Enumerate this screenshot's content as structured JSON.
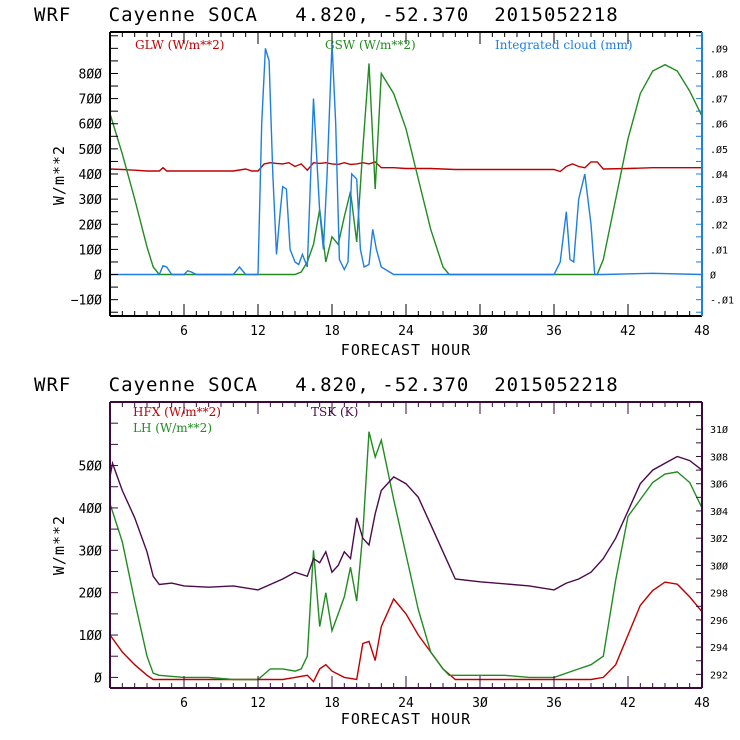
{
  "chart_data": [
    {
      "type": "line",
      "title": "WRF   Cayenne SOCA   4.820, -52.370  2015052218",
      "xlabel": "FORECAST HOUR",
      "ylabel": "W/m**2",
      "xlim": [
        0,
        48
      ],
      "ylim": [
        -165,
        965
      ],
      "xticks": [
        6,
        12,
        18,
        24,
        30,
        36,
        42,
        48
      ],
      "yticks": [
        -100,
        0,
        100,
        200,
        300,
        400,
        500,
        600,
        700,
        800
      ],
      "y2lim": [
        -0.0165,
        0.0965
      ],
      "y2ticks": [
        -0.01,
        0,
        0.01,
        0.02,
        0.03,
        0.04,
        0.05,
        0.06,
        0.07,
        0.08,
        0.09
      ],
      "y2ticklabels": [
        "-.01",
        "0",
        ".01",
        ".02",
        ".03",
        ".04",
        ".05",
        ".06",
        ".07",
        ".08",
        ".09"
      ],
      "legend_placement": "top",
      "series": [
        {
          "name": "GLW (W/m**2)",
          "color": "#c00000",
          "axis": "left",
          "x": [
            0,
            1,
            2,
            3,
            4,
            4.3,
            4.6,
            5,
            6,
            7,
            8,
            9,
            10,
            11,
            11.5,
            12,
            12.5,
            13,
            13.5,
            14,
            14.5,
            15,
            15.5,
            16,
            16.5,
            17,
            17.5,
            18,
            18.5,
            19,
            19.5,
            20,
            20.5,
            21,
            21.5,
            22,
            23,
            24,
            26,
            28,
            30,
            32,
            34,
            36,
            36.5,
            37,
            37.5,
            38,
            38.5,
            39,
            39.5,
            40,
            42,
            44,
            46,
            48
          ],
          "y": [
            420,
            418,
            415,
            412,
            412,
            425,
            412,
            412,
            412,
            412,
            412,
            412,
            412,
            420,
            412,
            412,
            440,
            445,
            442,
            440,
            445,
            430,
            440,
            415,
            445,
            442,
            445,
            440,
            438,
            445,
            438,
            440,
            445,
            440,
            448,
            425,
            425,
            422,
            422,
            418,
            418,
            418,
            418,
            418,
            410,
            430,
            440,
            430,
            425,
            448,
            448,
            420,
            422,
            425,
            425,
            425
          ]
        },
        {
          "name": "GSW (W/m**2)",
          "color": "#228b22",
          "axis": "left",
          "x": [
            0,
            1,
            2,
            3,
            3.5,
            4,
            6,
            8,
            10,
            12,
            13,
            14,
            15,
            15.5,
            16,
            16.5,
            17,
            17.5,
            18,
            18.5,
            19,
            19.5,
            20,
            20.5,
            21,
            21.5,
            22,
            23,
            24,
            25,
            26,
            27,
            27.5,
            28,
            30,
            32,
            34,
            36,
            38,
            39,
            39.5,
            40,
            41,
            42,
            43,
            44,
            45,
            46,
            47,
            48
          ],
          "y": [
            640,
            480,
            300,
            110,
            30,
            0,
            0,
            0,
            0,
            0,
            0,
            0,
            0,
            10,
            50,
            120,
            260,
            50,
            150,
            120,
            230,
            330,
            130,
            500,
            840,
            340,
            800,
            720,
            580,
            380,
            180,
            30,
            0,
            0,
            0,
            0,
            0,
            0,
            0,
            0,
            0,
            60,
            300,
            540,
            720,
            810,
            835,
            810,
            730,
            630
          ]
        },
        {
          "name": "Integrated cloud (mm)",
          "color": "#1e7fe0",
          "axis": "right",
          "x": [
            0,
            2,
            4,
            4.3,
            4.6,
            5,
            6,
            6.3,
            6.6,
            7,
            10,
            10.5,
            11,
            12,
            12.3,
            12.6,
            12.9,
            13.2,
            13.5,
            13.8,
            14,
            14.3,
            14.6,
            15,
            15.3,
            15.6,
            16,
            16.5,
            17,
            17.3,
            17.6,
            18,
            18.3,
            18.6,
            19,
            19.3,
            19.6,
            20,
            20.3,
            20.6,
            21,
            21.3,
            21.6,
            22,
            23,
            24,
            30,
            36,
            36.5,
            37,
            37.3,
            37.6,
            38,
            38.5,
            39,
            39.3,
            40,
            44,
            48
          ],
          "y": [
            0,
            0,
            0,
            0.0035,
            0.003,
            0,
            0,
            0.0015,
            0.001,
            0,
            0,
            0.003,
            0,
            0,
            0.06,
            0.09,
            0.085,
            0.04,
            0.008,
            0.025,
            0.035,
            0.034,
            0.01,
            0.005,
            0.004,
            0.008,
            0.003,
            0.07,
            0.025,
            0.01,
            0.04,
            0.092,
            0.06,
            0.006,
            0.002,
            0.005,
            0.04,
            0.038,
            0.01,
            0.003,
            0.004,
            0.018,
            0.01,
            0.003,
            0,
            0,
            0,
            0,
            0.005,
            0.025,
            0.006,
            0.005,
            0.03,
            0.04,
            0.02,
            0,
            0,
            0.0005,
            0
          ]
        }
      ]
    },
    {
      "type": "line",
      "title": "WRF   Cayenne SOCA   4.820, -52.370  2015052218",
      "xlabel": "FORECAST HOUR",
      "ylabel": "W/m**2",
      "xlim": [
        0,
        48
      ],
      "ylim": [
        -25,
        650
      ],
      "xticks": [
        6,
        12,
        18,
        24,
        30,
        36,
        42,
        48
      ],
      "yticks": [
        0,
        100,
        200,
        300,
        400,
        500
      ],
      "y2lim": [
        291,
        312
      ],
      "y2ticks": [
        292,
        294,
        296,
        298,
        300,
        302,
        304,
        306,
        308,
        310
      ],
      "legend_placement": "top-left",
      "series": [
        {
          "name": "HFX (W/m**2)",
          "color": "#c00000",
          "axis": "left",
          "x": [
            0,
            1,
            2,
            3,
            3.5,
            4,
            6,
            8,
            10,
            12,
            14,
            15,
            16,
            16.5,
            17,
            17.5,
            18,
            19,
            20,
            20.5,
            21,
            21.5,
            22,
            23,
            24,
            25,
            26,
            27,
            28,
            30,
            32,
            34,
            36,
            38,
            39,
            40,
            41,
            42,
            43,
            44,
            45,
            46,
            47,
            48
          ],
          "y": [
            100,
            60,
            30,
            5,
            -5,
            -5,
            -5,
            -5,
            -5,
            -5,
            -5,
            0,
            5,
            -10,
            20,
            30,
            15,
            0,
            -5,
            80,
            85,
            40,
            120,
            185,
            150,
            100,
            60,
            20,
            -5,
            -5,
            -5,
            -5,
            -5,
            -5,
            -5,
            0,
            30,
            100,
            170,
            205,
            225,
            220,
            190,
            155
          ]
        },
        {
          "name": "LH (W/m**2)",
          "color": "#228b22",
          "axis": "left",
          "x": [
            0,
            1,
            2,
            3,
            3.5,
            4,
            6,
            8,
            10,
            12,
            13,
            14,
            15,
            15.5,
            16,
            16.5,
            17,
            17.5,
            18,
            18.5,
            19,
            19.5,
            20,
            20.5,
            21,
            21.5,
            22,
            23,
            24,
            25,
            26,
            27,
            27.5,
            28,
            30,
            32,
            34,
            36,
            38,
            39,
            40,
            41,
            42,
            43,
            44,
            45,
            46,
            47,
            48
          ],
          "y": [
            410,
            320,
            180,
            50,
            10,
            5,
            0,
            0,
            -5,
            -5,
            20,
            20,
            15,
            20,
            50,
            300,
            120,
            200,
            110,
            150,
            190,
            260,
            180,
            340,
            580,
            520,
            560,
            420,
            290,
            160,
            60,
            20,
            5,
            5,
            5,
            5,
            0,
            0,
            20,
            30,
            50,
            230,
            380,
            420,
            460,
            480,
            485,
            460,
            400
          ]
        },
        {
          "name": "TSK (K)",
          "color": "#4b0a4b",
          "axis": "right",
          "x": [
            0,
            0.2,
            1,
            2,
            3,
            3.5,
            4,
            5,
            6,
            8,
            10,
            12,
            14,
            15,
            16,
            16.5,
            17,
            17.5,
            18,
            18.5,
            19,
            19.5,
            20,
            20.5,
            21,
            21.5,
            22,
            23,
            24,
            25,
            26,
            27,
            28,
            30,
            34,
            36,
            37,
            38,
            39,
            40,
            41,
            42,
            43,
            44,
            45,
            46,
            47,
            48
          ],
          "y": [
            306.5,
            307.5,
            305.5,
            303.5,
            301,
            299.2,
            298.6,
            298.7,
            298.5,
            298.4,
            298.5,
            298.2,
            299,
            299.5,
            299.2,
            300.5,
            300.2,
            301,
            299.5,
            300,
            301,
            300.5,
            303.5,
            302,
            301.5,
            303.8,
            305.5,
            306.5,
            306,
            305,
            303,
            301,
            299,
            298.8,
            298.5,
            298.2,
            298.7,
            299,
            299.5,
            300.5,
            302,
            304,
            306,
            307,
            307.5,
            308,
            307.7,
            307
          ]
        }
      ]
    }
  ],
  "charts": [
    {
      "title": "WRF   Cayenne SOCA   4.820, -52.370  2015052218",
      "ylabel": "W/m**2",
      "xlabel": "FORECAST HOUR",
      "legend": [
        {
          "label": "GLW (W/m**2)",
          "color": "#c00000"
        },
        {
          "label": "GSW (W/m**2)",
          "color": "#228b22"
        },
        {
          "label": "Integrated cloud (mm)",
          "color": "#1e7fe0"
        }
      ]
    },
    {
      "title": "WRF   Cayenne SOCA   4.820, -52.370  2015052218",
      "ylabel": "W/m**2",
      "xlabel": "FORECAST HOUR",
      "legend": [
        {
          "label": "HFX (W/m**2)",
          "color": "#c00000"
        },
        {
          "label": "LH  (W/m**2)",
          "color": "#228b22"
        },
        {
          "label": "TSK (K)",
          "color": "#4b0a4b"
        }
      ]
    }
  ]
}
